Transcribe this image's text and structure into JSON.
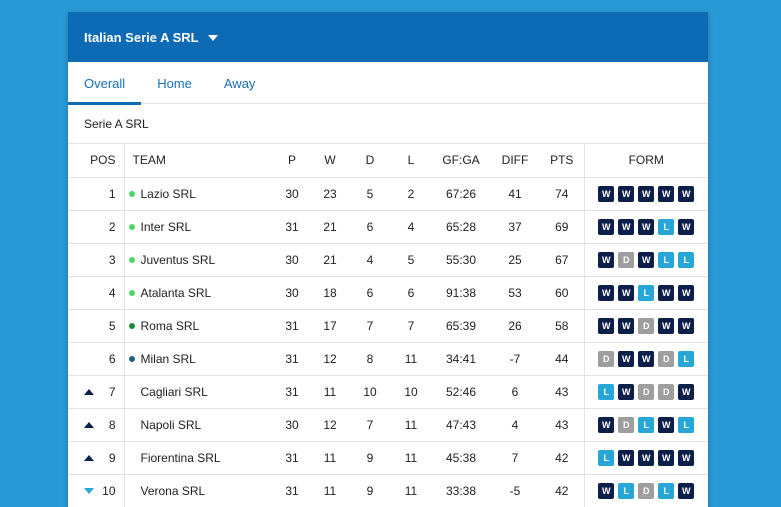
{
  "header": {
    "title": "Italian Serie A SRL"
  },
  "tabs": [
    {
      "label": "Overall",
      "active": true
    },
    {
      "label": "Home",
      "active": false
    },
    {
      "label": "Away",
      "active": false
    }
  ],
  "subtitle": "Serie A SRL",
  "columns": {
    "pos": "POS",
    "team": "TEAM",
    "p": "P",
    "w": "W",
    "d": "D",
    "l": "L",
    "gfga": "GF:GA",
    "diff": "DIFF",
    "pts": "PTS",
    "form": "FORM"
  },
  "colors": {
    "header_bg": "#0d6bb5",
    "page_bg": "#2a9ad6",
    "win": "#0b1f4a",
    "draw": "#9e9e9e",
    "loss": "#27a7d8",
    "qual_light_green": "#4cd964",
    "qual_dark_green": "#1b8a3a",
    "qual_blue": "#1d5f8a"
  },
  "rows": [
    {
      "pos": "1",
      "team": "Lazio SRL",
      "p": "30",
      "w": "23",
      "d": "5",
      "l": "2",
      "gfga": "67:26",
      "diff": "41",
      "pts": "74",
      "movement": "none",
      "dot": "#4cd964",
      "form": [
        "W",
        "W",
        "W",
        "W",
        "W"
      ]
    },
    {
      "pos": "2",
      "team": "Inter SRL",
      "p": "31",
      "w": "21",
      "d": "6",
      "l": "4",
      "gfga": "65:28",
      "diff": "37",
      "pts": "69",
      "movement": "none",
      "dot": "#4cd964",
      "form": [
        "W",
        "W",
        "W",
        "L",
        "W"
      ]
    },
    {
      "pos": "3",
      "team": "Juventus SRL",
      "p": "30",
      "w": "21",
      "d": "4",
      "l": "5",
      "gfga": "55:30",
      "diff": "25",
      "pts": "67",
      "movement": "none",
      "dot": "#4cd964",
      "form": [
        "W",
        "D",
        "W",
        "L",
        "L"
      ]
    },
    {
      "pos": "4",
      "team": "Atalanta SRL",
      "p": "30",
      "w": "18",
      "d": "6",
      "l": "6",
      "gfga": "91:38",
      "diff": "53",
      "pts": "60",
      "movement": "none",
      "dot": "#4cd964",
      "form": [
        "W",
        "W",
        "L",
        "W",
        "W"
      ]
    },
    {
      "pos": "5",
      "team": "Roma SRL",
      "p": "31",
      "w": "17",
      "d": "7",
      "l": "7",
      "gfga": "65:39",
      "diff": "26",
      "pts": "58",
      "movement": "none",
      "dot": "#1b8a3a",
      "form": [
        "W",
        "W",
        "D",
        "W",
        "W"
      ]
    },
    {
      "pos": "6",
      "team": "Milan SRL",
      "p": "31",
      "w": "12",
      "d": "8",
      "l": "11",
      "gfga": "34:41",
      "diff": "-7",
      "pts": "44",
      "movement": "none",
      "dot": "#1d5f8a",
      "form": [
        "D",
        "W",
        "W",
        "D",
        "L"
      ]
    },
    {
      "pos": "7",
      "team": "Cagliari SRL",
      "p": "31",
      "w": "11",
      "d": "10",
      "l": "10",
      "gfga": "52:46",
      "diff": "6",
      "pts": "43",
      "movement": "up",
      "dot": "",
      "form": [
        "L",
        "W",
        "D",
        "D",
        "W"
      ]
    },
    {
      "pos": "8",
      "team": "Napoli SRL",
      "p": "30",
      "w": "12",
      "d": "7",
      "l": "11",
      "gfga": "47:43",
      "diff": "4",
      "pts": "43",
      "movement": "up",
      "dot": "",
      "form": [
        "W",
        "D",
        "L",
        "W",
        "L"
      ]
    },
    {
      "pos": "9",
      "team": "Fiorentina SRL",
      "p": "31",
      "w": "11",
      "d": "9",
      "l": "11",
      "gfga": "45:38",
      "diff": "7",
      "pts": "42",
      "movement": "up",
      "dot": "",
      "form": [
        "L",
        "W",
        "W",
        "W",
        "W"
      ]
    },
    {
      "pos": "10",
      "team": "Verona SRL",
      "p": "31",
      "w": "11",
      "d": "9",
      "l": "11",
      "gfga": "33:38",
      "diff": "-5",
      "pts": "42",
      "movement": "down",
      "dot": "",
      "form": [
        "W",
        "L",
        "D",
        "L",
        "W"
      ]
    }
  ]
}
